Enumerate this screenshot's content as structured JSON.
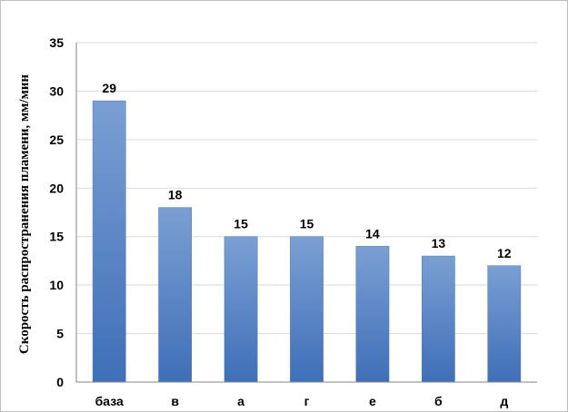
{
  "chart_data": {
    "type": "bar",
    "title": "",
    "xlabel": "",
    "ylabel": "Скорость распространения пламени, мм/мин",
    "categories": [
      "база",
      "в",
      "а",
      "г",
      "е",
      "б",
      "д"
    ],
    "values": [
      29,
      18,
      15,
      15,
      14,
      13,
      12
    ],
    "data_labels": [
      "29",
      "18",
      "15",
      "15",
      "14",
      "13",
      "12"
    ],
    "ylim": [
      0,
      35
    ],
    "yticks": [
      0,
      5,
      10,
      15,
      20,
      25,
      30,
      35
    ],
    "grid": true,
    "legend": "none",
    "colors": {
      "bar_top": "#7a9fd3",
      "bar_bottom": "#3f6fb8",
      "bar_edge": "#4a76b8"
    }
  }
}
